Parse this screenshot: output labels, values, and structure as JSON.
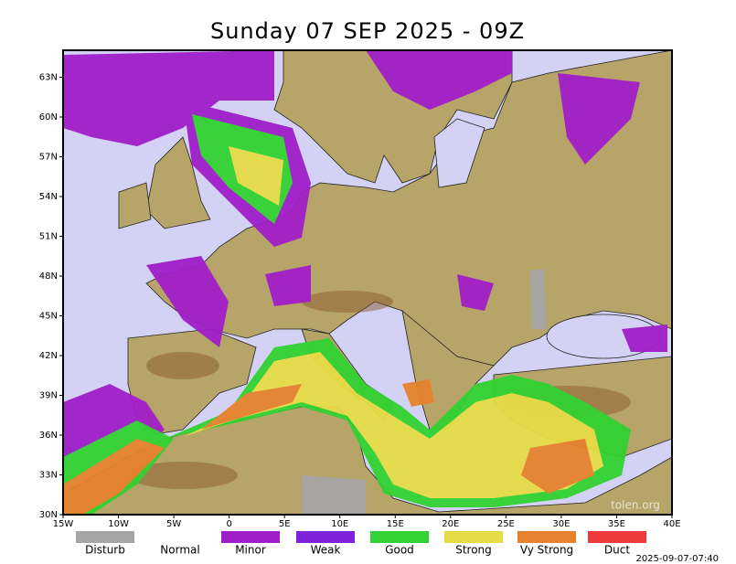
{
  "title": "Sunday 07 SEP 2025 - 09Z",
  "lat_ticks": [
    {
      "value": 63,
      "label": "63N"
    },
    {
      "value": 60,
      "label": "60N"
    },
    {
      "value": 57,
      "label": "57N"
    },
    {
      "value": 54,
      "label": "54N"
    },
    {
      "value": 51,
      "label": "51N"
    },
    {
      "value": 48,
      "label": "48N"
    },
    {
      "value": 45,
      "label": "45N"
    },
    {
      "value": 42,
      "label": "42N"
    },
    {
      "value": 39,
      "label": "39N"
    },
    {
      "value": 36,
      "label": "36N"
    },
    {
      "value": 33,
      "label": "33N"
    },
    {
      "value": 30,
      "label": "30N"
    }
  ],
  "lon_ticks": [
    {
      "value": -15,
      "label": "15W"
    },
    {
      "value": -10,
      "label": "10W"
    },
    {
      "value": -5,
      "label": "5W"
    },
    0,
    {
      "value": 5,
      "label": "5E"
    },
    {
      "value": 10,
      "label": "10E"
    },
    {
      "value": 15,
      "label": "15E"
    },
    {
      "value": 20,
      "label": "20E"
    },
    {
      "value": 25,
      "label": "25E"
    },
    {
      "value": 30,
      "label": "30E"
    },
    {
      "value": 35,
      "label": "35E"
    },
    {
      "value": 40,
      "label": "40E"
    }
  ],
  "legend": [
    {
      "label": "Disturb",
      "color": "#a6a6a6"
    },
    {
      "label": "Normal",
      "color": "#ffffff"
    },
    {
      "label": "Minor",
      "color": "#a01ec8"
    },
    {
      "label": "Weak",
      "color": "#7e22dc"
    },
    {
      "label": "Good",
      "color": "#32d232"
    },
    {
      "label": "Strong",
      "color": "#e6dc46"
    },
    {
      "label": "Vy Strong",
      "color": "#e6822d"
    },
    {
      "label": "Duct",
      "color": "#ee3a3a"
    }
  ],
  "watermark": "tolen.org",
  "timestamp": "2025-09-07-07:40"
}
